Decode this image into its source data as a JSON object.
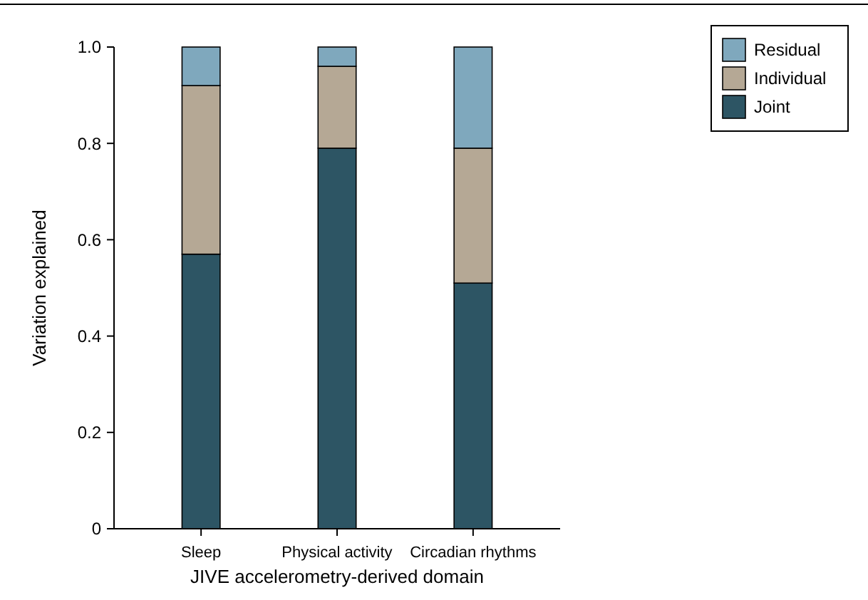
{
  "chart_data": {
    "type": "bar",
    "stacked": true,
    "xlabel": "JIVE accelerometry-derived domain",
    "ylabel": "Variation explained",
    "categories": [
      "Sleep",
      "Physical activity",
      "Circadian rhythms"
    ],
    "series": [
      {
        "name": "Joint",
        "color": "#2d5564",
        "values": [
          0.57,
          0.79,
          0.51
        ]
      },
      {
        "name": "Individual",
        "color": "#b5a895",
        "values": [
          0.35,
          0.17,
          0.28
        ]
      },
      {
        "name": "Residual",
        "color": "#7fa8bd",
        "values": [
          0.08,
          0.04,
          0.21
        ]
      }
    ],
    "ylim": [
      0,
      1
    ],
    "yticks": [
      0,
      {
        "value": 0.2,
        "label": "0.2"
      },
      {
        "value": 0.4,
        "label": "0.4"
      },
      {
        "value": 0.6,
        "label": "0.6"
      },
      {
        "value": 0.8,
        "label": "0.8"
      },
      {
        "value": 1,
        "label": "1.0"
      }
    ],
    "legend": "top right",
    "grid": false
  }
}
